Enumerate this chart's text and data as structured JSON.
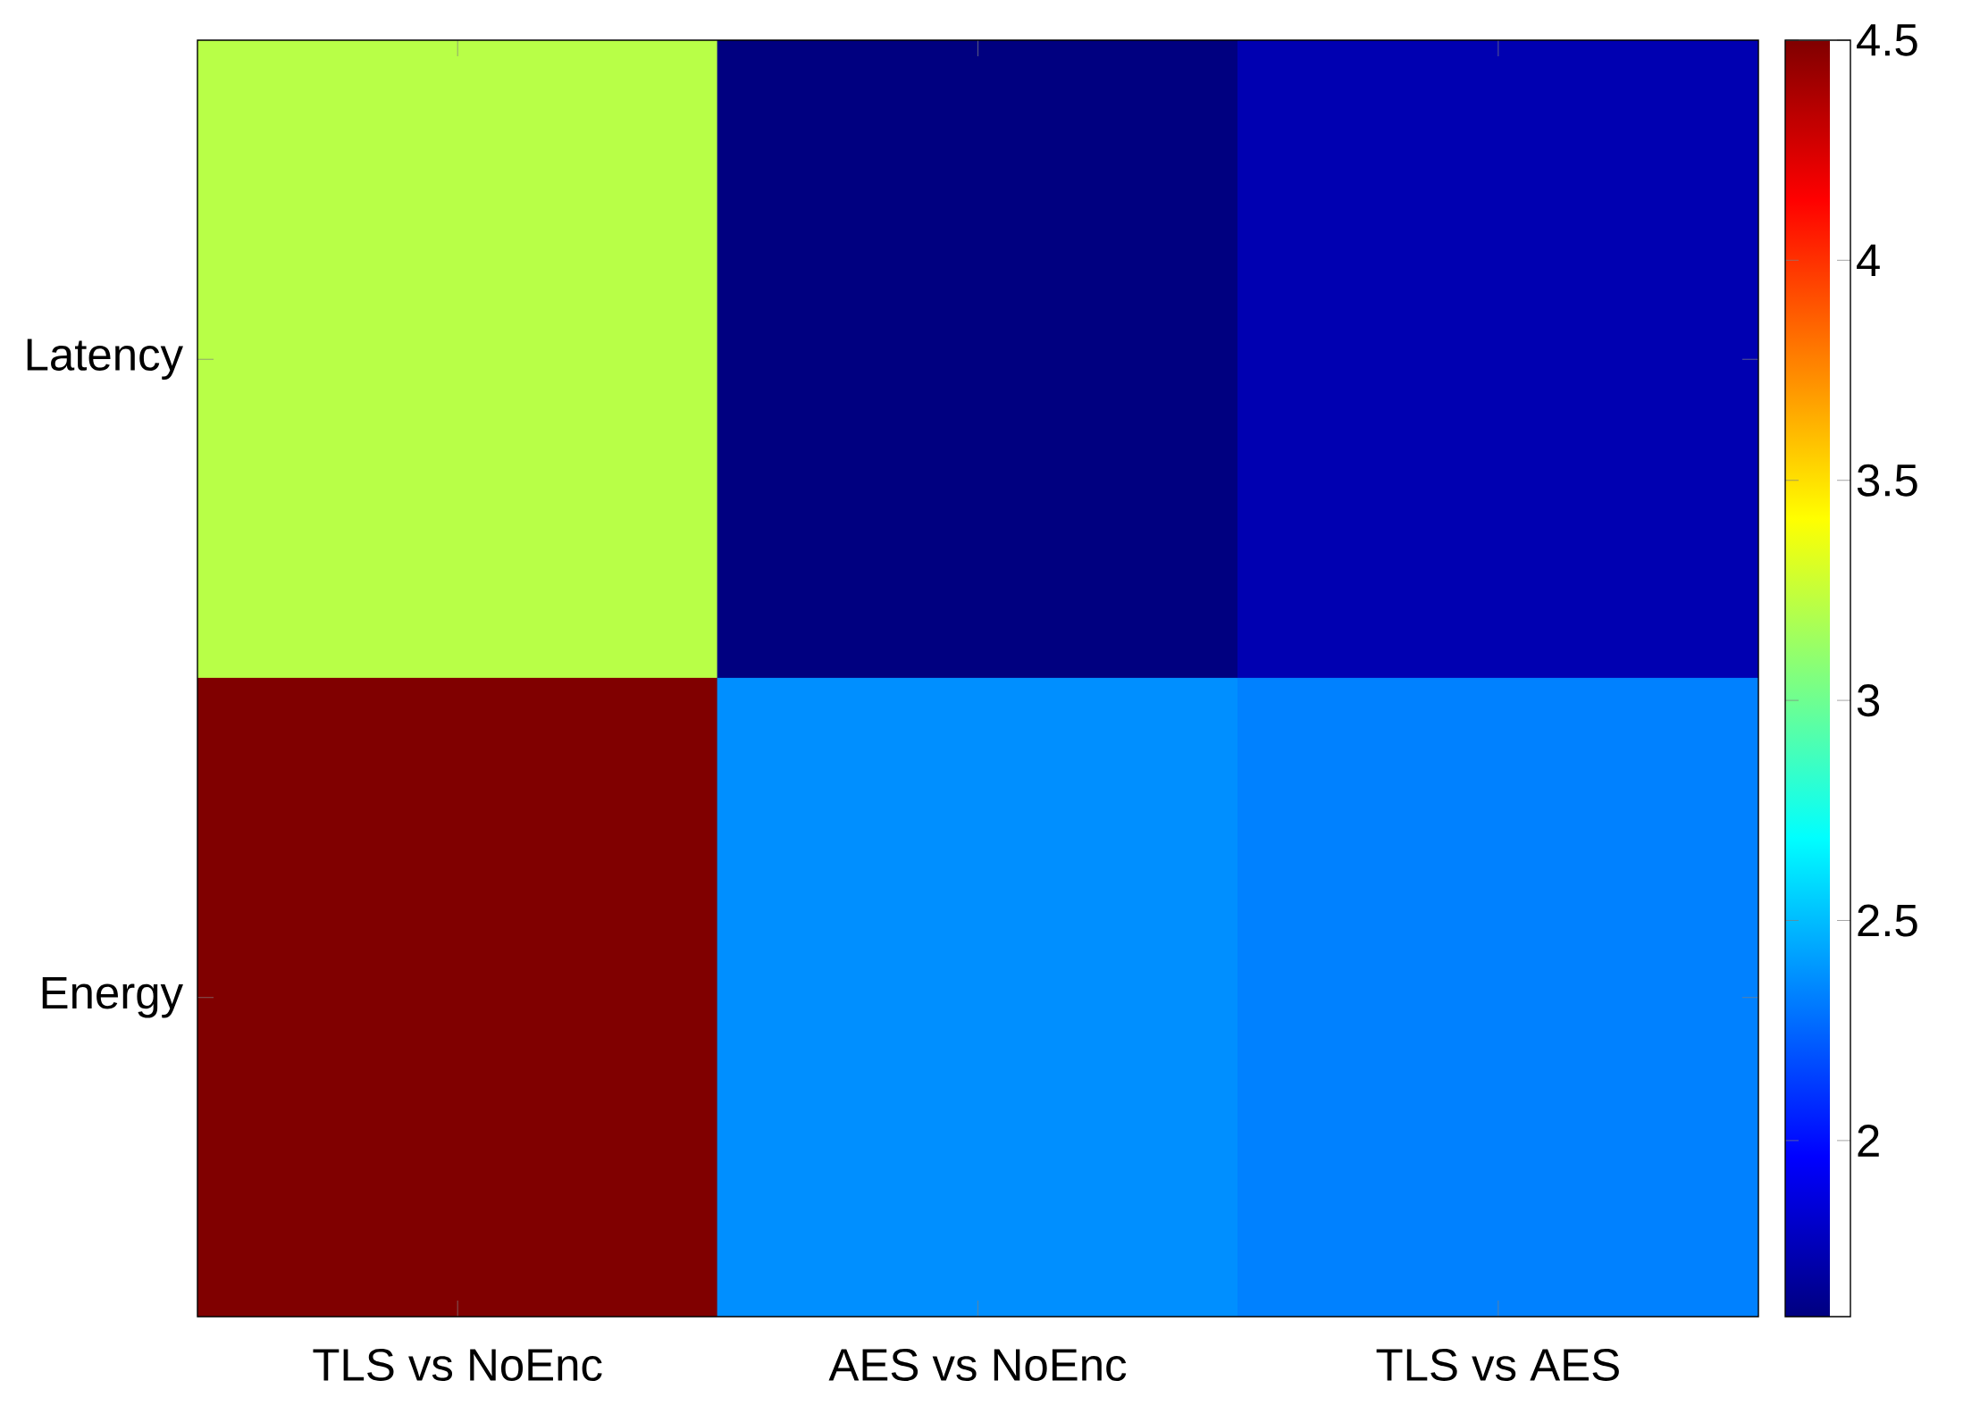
{
  "chart_data": {
    "type": "heatmap",
    "categories": [
      "TLS vs NoEnc",
      "AES vs NoEnc",
      "TLS vs AES"
    ],
    "y_categories": [
      "Latency",
      "Energy"
    ],
    "cells": [
      [
        3.21,
        1.6,
        1.74
      ],
      [
        4.5,
        2.37,
        2.33
      ]
    ],
    "clim": [
      1.6,
      4.5
    ],
    "cticks": [
      2,
      2.5,
      3,
      3.5,
      4,
      4.5
    ]
  }
}
